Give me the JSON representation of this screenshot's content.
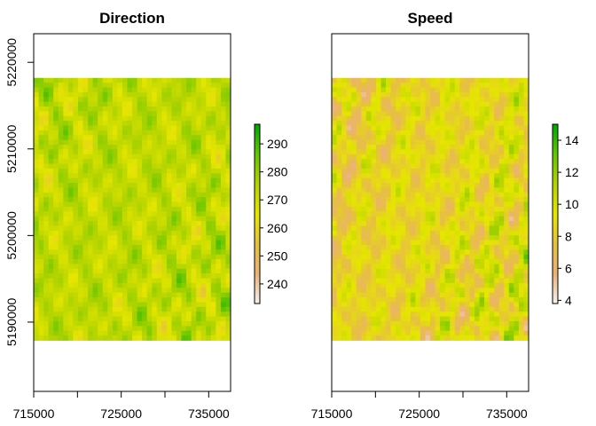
{
  "panels": [
    {
      "title": "Direction",
      "variable": "direction",
      "legend": {
        "min": 233,
        "max": 297,
        "ticks": [
          "240",
          "250",
          "260",
          "270",
          "280",
          "290"
        ],
        "tick_values": [
          240,
          250,
          260,
          270,
          280,
          290
        ]
      }
    },
    {
      "title": "Speed",
      "variable": "speed",
      "legend": {
        "min": 3.8,
        "max": 15,
        "ticks": [
          "4",
          "6",
          "8",
          "10",
          "12",
          "14"
        ],
        "tick_values": [
          4,
          6,
          8,
          10,
          12,
          14
        ]
      }
    }
  ],
  "axes": {
    "x_ticks": [
      "715000",
      "725000",
      "735000"
    ],
    "x_tick_values": [
      715000,
      725000,
      735000
    ],
    "x_minor_tick_values": [
      720000,
      730000
    ],
    "x_range": [
      715000,
      737500
    ],
    "y_ticks": [
      "5190000",
      "5200000",
      "5210000",
      "5220000"
    ],
    "y_tick_values": [
      5190000,
      5200000,
      5210000,
      5220000
    ],
    "y_range": [
      5182000,
      5223300
    ]
  },
  "raster_extent": {
    "x": [
      715000,
      737500
    ],
    "y": [
      5187900,
      5218200
    ]
  },
  "colors": {
    "palette": [
      "#f2f2f2",
      "#ecb176",
      "#e6c13e",
      "#e6e600",
      "#b3d400",
      "#63c600",
      "#00a600"
    ],
    "frame": "#000000"
  }
}
